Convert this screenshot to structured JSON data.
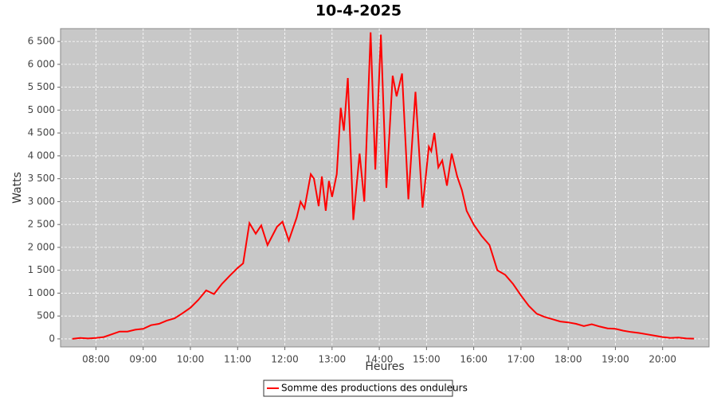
{
  "chart_data": {
    "type": "line",
    "title": "10-4-2025",
    "x_label": "Heures",
    "y_label": "Watts",
    "x": [
      "07:30",
      "07:40",
      "07:50",
      "08:00",
      "08:10",
      "08:20",
      "08:30",
      "08:40",
      "08:50",
      "09:00",
      "09:10",
      "09:20",
      "09:30",
      "09:40",
      "09:50",
      "10:00",
      "10:10",
      "10:20",
      "10:30",
      "10:40",
      "10:50",
      "11:00",
      "11:07",
      "11:15",
      "11:23",
      "11:30",
      "11:38",
      "11:50",
      "11:57",
      "12:05",
      "12:15",
      "12:20",
      "12:25",
      "12:33",
      "12:37",
      "12:43",
      "12:47",
      "12:52",
      "12:56",
      "13:00",
      "13:06",
      "13:11",
      "13:15",
      "13:20",
      "13:27",
      "13:35",
      "13:41",
      "13:49",
      "13:55",
      "14:02",
      "14:09",
      "14:17",
      "14:22",
      "14:29",
      "14:37",
      "14:46",
      "14:55",
      "15:03",
      "15:06",
      "15:10",
      "15:15",
      "15:20",
      "15:26",
      "15:32",
      "15:39",
      "15:45",
      "15:51",
      "16:00",
      "16:10",
      "16:20",
      "16:30",
      "16:40",
      "16:50",
      "17:00",
      "17:10",
      "17:20",
      "17:30",
      "17:40",
      "17:50",
      "18:00",
      "18:10",
      "18:20",
      "18:30",
      "18:40",
      "18:50",
      "19:00",
      "19:10",
      "19:20",
      "19:30",
      "19:40",
      "19:50",
      "20:00",
      "20:10",
      "20:20",
      "20:30",
      "20:40"
    ],
    "series": [
      {
        "name": "Somme des productions des onduleurs",
        "color": "#ff0000",
        "values": [
          0,
          20,
          10,
          20,
          40,
          100,
          160,
          160,
          200,
          220,
          300,
          330,
          400,
          450,
          560,
          680,
          850,
          1060,
          980,
          1200,
          1380,
          1550,
          1650,
          2530,
          2300,
          2480,
          2050,
          2450,
          2560,
          2150,
          2650,
          3000,
          2850,
          3600,
          3500,
          2900,
          3550,
          2800,
          3450,
          3100,
          3600,
          5050,
          4550,
          5700,
          2600,
          4050,
          3000,
          6700,
          3700,
          6650,
          3300,
          5750,
          5300,
          5800,
          3050,
          5400,
          2870,
          4200,
          4100,
          4500,
          3750,
          3900,
          3350,
          4050,
          3550,
          3250,
          2800,
          2500,
          2250,
          2050,
          1500,
          1400,
          1200,
          950,
          720,
          550,
          480,
          430,
          380,
          360,
          330,
          280,
          320,
          270,
          230,
          220,
          180,
          150,
          130,
          100,
          70,
          40,
          20,
          30,
          10,
          5
        ]
      }
    ],
    "xlim": [
      "07:15",
      "20:59"
    ],
    "xticks": [
      "08:00",
      "09:00",
      "10:00",
      "11:00",
      "12:00",
      "13:00",
      "14:00",
      "15:00",
      "16:00",
      "17:00",
      "18:00",
      "19:00",
      "20:00"
    ],
    "ylim": [
      -175,
      6780
    ],
    "yticks": [
      0,
      {
        "value": 500,
        "label": "500"
      },
      {
        "value": 1000,
        "label": "1 000"
      },
      {
        "value": 1500,
        "label": "1 500"
      },
      {
        "value": 2000,
        "label": "2 000"
      },
      {
        "value": 2500,
        "label": "2 500"
      },
      {
        "value": 3000,
        "label": "3 000"
      },
      {
        "value": 3500,
        "label": "3 500"
      },
      {
        "value": 4000,
        "label": "4 000"
      },
      {
        "value": 4500,
        "label": "4 500"
      },
      {
        "value": 5000,
        "label": "5 000"
      },
      {
        "value": 5500,
        "label": "5 500"
      },
      {
        "value": 6000,
        "label": "6 000"
      },
      {
        "value": 6500,
        "label": "6 500"
      }
    ],
    "grid": true,
    "legend": "bottom"
  }
}
